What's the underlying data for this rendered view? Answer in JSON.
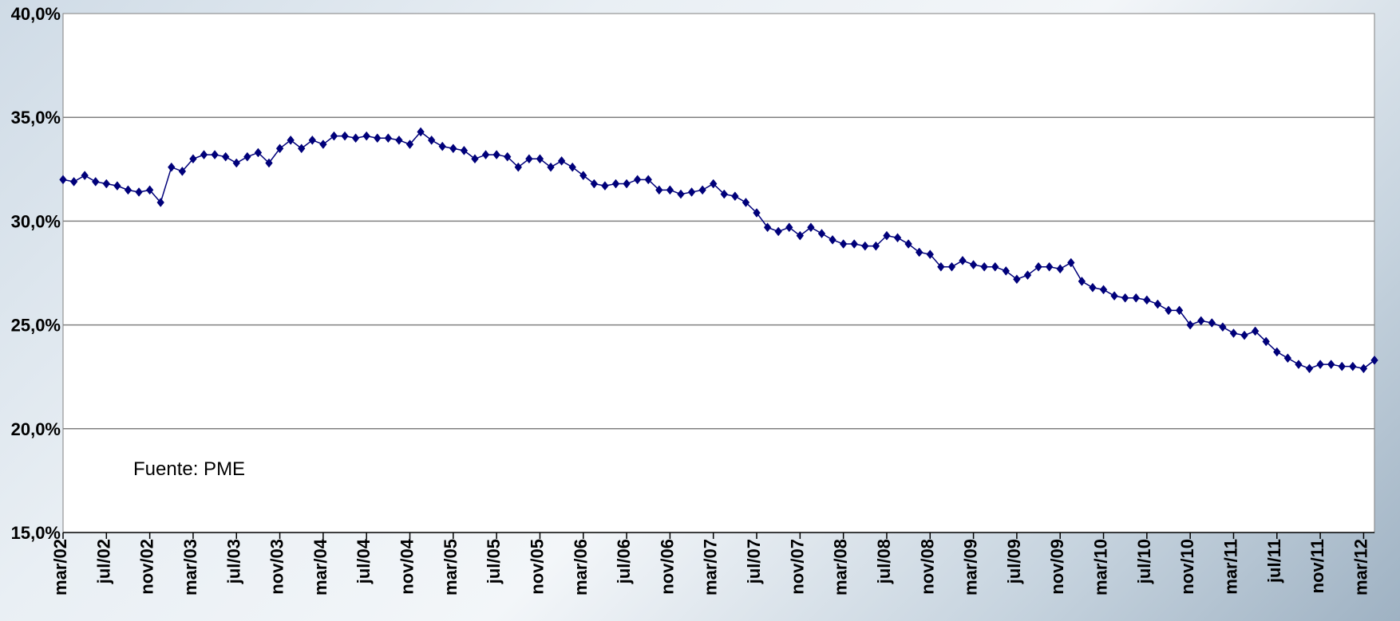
{
  "chart_data": {
    "type": "line",
    "title": "",
    "xlabel": "",
    "ylabel": "",
    "ylim": [
      15,
      40
    ],
    "y_ticks": [
      "15,0%",
      "20,0%",
      "25,0%",
      "30,0%",
      "35,0%",
      "40,0%"
    ],
    "y_tick_values": [
      15,
      20,
      25,
      30,
      35,
      40
    ],
    "x_tick_labels": [
      "mar/02",
      "jul/02",
      "nov/02",
      "mar/03",
      "jul/03",
      "nov/03",
      "mar/04",
      "jul/04",
      "nov/04",
      "mar/05",
      "jul/05",
      "nov/05",
      "mar/06",
      "jul/06",
      "nov/06",
      "mar/07",
      "jul/07",
      "nov/07",
      "mar/08",
      "jul/08",
      "nov/08",
      "mar/09",
      "jul/09",
      "nov/09",
      "mar/10",
      "jul/10",
      "nov/10",
      "mar/11",
      "jul/11",
      "nov/11",
      "mar/12"
    ],
    "grid": true,
    "line_color": "#00007a",
    "marker": "diamond",
    "annotation": "Fuente: PME",
    "series": [
      {
        "values": [
          32.0,
          31.9,
          32.2,
          31.9,
          31.8,
          31.7,
          31.5,
          31.4,
          31.5,
          30.9,
          32.6,
          32.4,
          33.0,
          33.2,
          33.2,
          33.1,
          32.8,
          33.1,
          33.3,
          32.8,
          33.5,
          33.9,
          33.5,
          33.9,
          33.7,
          34.1,
          34.1,
          34.0,
          34.1,
          34.0,
          34.0,
          33.9,
          33.7,
          34.3,
          33.9,
          33.6,
          33.5,
          33.4,
          33.0,
          33.2,
          33.2,
          33.1,
          32.6,
          33.0,
          33.0,
          32.6,
          32.9,
          32.6,
          32.2,
          31.8,
          31.7,
          31.8,
          31.8,
          32.0,
          32.0,
          31.5,
          31.5,
          31.3,
          31.4,
          31.5,
          31.8,
          31.3,
          31.2,
          30.9,
          30.4,
          29.7,
          29.5,
          29.7,
          29.3,
          29.7,
          29.4,
          29.1,
          28.9,
          28.9,
          28.8,
          28.8,
          29.3,
          29.2,
          28.9,
          28.5,
          28.4,
          27.8,
          27.8,
          28.1,
          27.9,
          27.8,
          27.8,
          27.6,
          27.2,
          27.4,
          27.8,
          27.8,
          27.7,
          28.0,
          27.1,
          26.8,
          26.7,
          26.4,
          26.3,
          26.3,
          26.2,
          26.0,
          25.7,
          25.7,
          25.0,
          25.2,
          25.1,
          24.9,
          24.6,
          24.5,
          24.7,
          24.2,
          23.7,
          23.4,
          23.1,
          22.9,
          23.1,
          23.1,
          23.0,
          23.0,
          22.9,
          23.3
        ]
      }
    ]
  }
}
